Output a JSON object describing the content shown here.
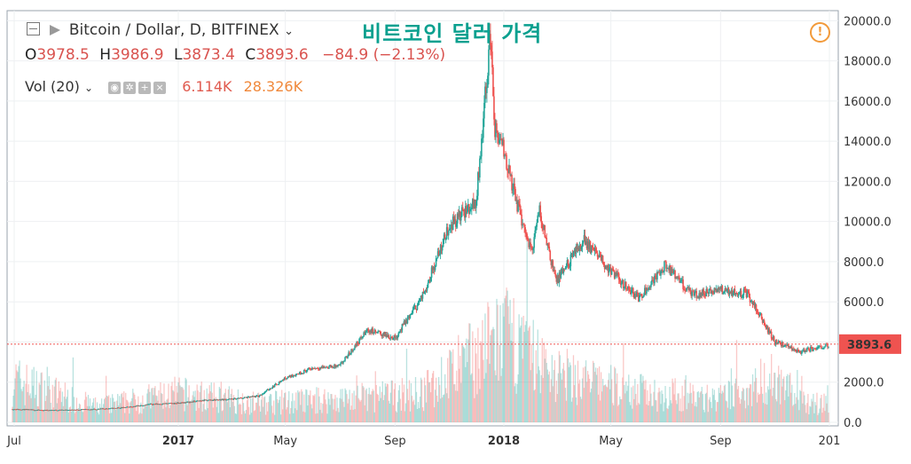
{
  "header": {
    "symbol": "Bitcoin / Dollar, D, BITFINEX",
    "overlay_title": "비트코인 달러 가격",
    "ohlc": {
      "o_label": "O",
      "o_value": "3978.5",
      "h_label": "H",
      "h_value": "3986.9",
      "l_label": "L",
      "l_value": "3873.4",
      "c_label": "C",
      "c_value": "3893.6",
      "change": "−84.9 (−2.13%)"
    },
    "volume": {
      "label": "Vol (20)",
      "value1": "6.114K",
      "value2": "28.326K"
    },
    "alert_icon": "!"
  },
  "colors": {
    "up": "#26a69a",
    "down": "#ef5350",
    "price_line": "#ef5350",
    "price_label_bg": "#ef5350",
    "grid": "#eef0f2",
    "overlay_title": "#0aa08f",
    "alert": "#f29a3a"
  },
  "chart_data": {
    "type": "candlestick",
    "y_axis_position": "right",
    "ylim": [
      0,
      20500
    ],
    "y_ticks": [
      "20000.0",
      "18000.0",
      "16000.0",
      "14000.0",
      "12000.0",
      "10000.0",
      "8000.0",
      "6000.0",
      "4000.0",
      "2000.0",
      "0.0"
    ],
    "x_ticks": [
      "Jul",
      "2017",
      "May",
      "Sep",
      "2018",
      "May",
      "Sep",
      "201"
    ],
    "grid": true,
    "last_price": 3893.6,
    "last_price_label": "3893.6",
    "approx_close_series": {
      "x": [
        "2016-07",
        "2016-08",
        "2016-09",
        "2016-10",
        "2016-11",
        "2016-12",
        "2017-01",
        "2017-02",
        "2017-03",
        "2017-04",
        "2017-05",
        "2017-06",
        "2017-07",
        "2017-08",
        "2017-09",
        "2017-10",
        "2017-11",
        "2017-12-01",
        "2017-12-17",
        "2017-12-22",
        "2018-01",
        "2018-01-15",
        "2018-02",
        "2018-02-10",
        "2018-03",
        "2018-04",
        "2018-05",
        "2018-06",
        "2018-07",
        "2018-08",
        "2018-09",
        "2018-10",
        "2018-11",
        "2018-12",
        "2018-12-31"
      ],
      "y": [
        650,
        600,
        610,
        650,
        730,
        900,
        950,
        1100,
        1150,
        1300,
        2200,
        2700,
        2800,
        4600,
        4200,
        6200,
        9800,
        11000,
        19300,
        14500,
        13500,
        11000,
        8500,
        10500,
        7000,
        9100,
        7500,
        6200,
        7800,
        6300,
        6600,
        6400,
        4000,
        3500,
        3893.6
      ]
    },
    "approx_volume_series": {
      "x": [
        "2016-07",
        "2016-10",
        "2017-01",
        "2017-04",
        "2017-07",
        "2017-10",
        "2017-12",
        "2018-01",
        "2018-03",
        "2018-06",
        "2018-09",
        "2018-11",
        "2018-12"
      ],
      "y": [
        2200,
        800,
        1500,
        1000,
        1200,
        1500,
        3500,
        4500,
        2500,
        1600,
        1200,
        2400,
        1000
      ]
    }
  }
}
